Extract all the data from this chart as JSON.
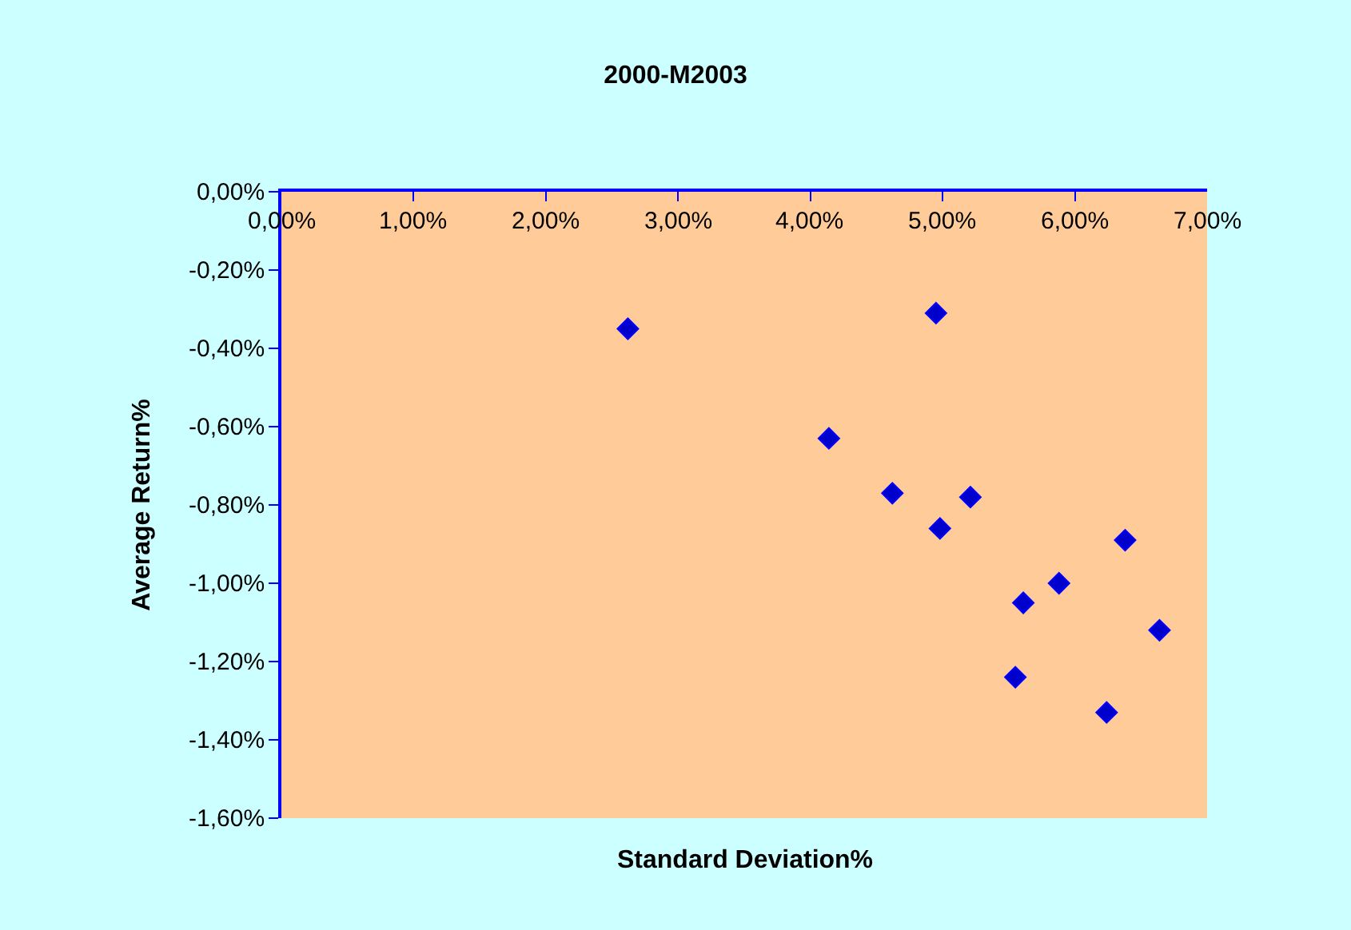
{
  "chart_data": {
    "type": "scatter",
    "title": "2000-M2003",
    "xlabel": "Standard Deviation%",
    "ylabel": "Average Return%",
    "x": [
      2.62,
      4.95,
      4.14,
      4.62,
      4.98,
      5.21,
      6.38,
      5.88,
      5.61,
      6.64,
      5.55,
      6.24
    ],
    "series": [
      {
        "color": "#0000cc",
        "values": [
          -0.35,
          -0.31,
          -0.63,
          -0.77,
          -0.86,
          -0.78,
          -0.89,
          -1.0,
          -1.05,
          -1.12,
          -1.24,
          -1.33
        ]
      }
    ],
    "marker": "diamond",
    "grid": false,
    "xlim": [
      0,
      7
    ],
    "xticks": [
      {
        "value": 0,
        "label": "0,00%"
      },
      {
        "value": 1,
        "label": "1,00%"
      },
      {
        "value": 2,
        "label": "2,00%"
      },
      {
        "value": 3,
        "label": "3,00%"
      },
      {
        "value": 4,
        "label": "4,00%"
      },
      {
        "value": 5,
        "label": "5,00%"
      },
      {
        "value": 6,
        "label": "6,00%"
      },
      {
        "value": 7,
        "label": "7,00%"
      }
    ],
    "ylim": [
      -1.6,
      0
    ],
    "yticks": [
      {
        "value": -1.6,
        "label": "-1,60%"
      },
      {
        "value": -1.4,
        "label": "-1,40%"
      },
      {
        "value": -1.2,
        "label": "-1,20%"
      },
      {
        "value": -1.0,
        "label": "-1,00%"
      },
      {
        "value": -0.8,
        "label": "-0,80%"
      },
      {
        "value": -0.6,
        "label": "-0,60%"
      },
      {
        "value": -0.4,
        "label": "-0,40%"
      },
      {
        "value": -0.2,
        "label": "-0,20%"
      },
      {
        "value": 0,
        "label": "0,00%"
      }
    ]
  }
}
